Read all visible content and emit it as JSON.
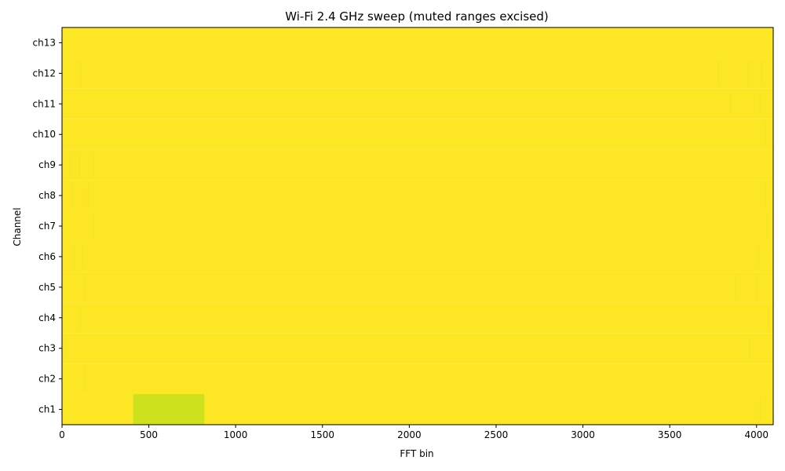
{
  "chart_data": {
    "type": "heatmap",
    "title": "Wi-Fi 2.4 GHz sweep (muted ranges excised)",
    "xlabel": "FFT bin",
    "ylabel": "Channel",
    "xlim": [
      0,
      4096
    ],
    "x_ticks": [
      0,
      500,
      1000,
      1500,
      2000,
      2500,
      3000,
      3500,
      4000
    ],
    "x_tick_labels": [
      "0",
      "500",
      "1000",
      "1500",
      "2000",
      "2500",
      "3000",
      "3500",
      "4000"
    ],
    "channels": [
      "ch1",
      "ch2",
      "ch3",
      "ch4",
      "ch5",
      "ch6",
      "ch7",
      "ch8",
      "ch9",
      "ch10",
      "ch11",
      "ch12",
      "ch13"
    ],
    "grid": false,
    "colormap": "viridis",
    "colors": {
      "background_value": "#fde725",
      "excised_region": "#cde11d",
      "faint_streak": "#f0e527"
    },
    "excised_ranges": [
      {
        "channel": "ch1",
        "x_start": 410,
        "x_end": 820,
        "value_color": "#cde11d"
      }
    ],
    "streaks": [
      {
        "channel": "ch1",
        "x": 4020
      },
      {
        "channel": "ch2",
        "x": 130
      },
      {
        "channel": "ch3",
        "x": 20
      },
      {
        "channel": "ch3",
        "x": 3960
      },
      {
        "channel": "ch4",
        "x": 105
      },
      {
        "channel": "ch4",
        "x": 4070
      },
      {
        "channel": "ch5",
        "x": 130
      },
      {
        "channel": "ch5",
        "x": 3880
      },
      {
        "channel": "ch5",
        "x": 4000
      },
      {
        "channel": "ch6",
        "x": 120
      },
      {
        "channel": "ch6",
        "x": 70
      },
      {
        "channel": "ch6",
        "x": 4010
      },
      {
        "channel": "ch7",
        "x": 180
      },
      {
        "channel": "ch7",
        "x": 4060
      },
      {
        "channel": "ch8",
        "x": 150
      },
      {
        "channel": "ch8",
        "x": 60
      },
      {
        "channel": "ch8",
        "x": 4050
      },
      {
        "channel": "ch9",
        "x": 180
      },
      {
        "channel": "ch9",
        "x": 100
      },
      {
        "channel": "ch9",
        "x": 50
      },
      {
        "channel": "ch10",
        "x": 4050
      },
      {
        "channel": "ch11",
        "x": 3850
      },
      {
        "channel": "ch11",
        "x": 3990
      },
      {
        "channel": "ch11",
        "x": 4020
      },
      {
        "channel": "ch12",
        "x": 110
      },
      {
        "channel": "ch12",
        "x": 3780
      },
      {
        "channel": "ch12",
        "x": 3950
      },
      {
        "channel": "ch12",
        "x": 4030
      }
    ]
  }
}
